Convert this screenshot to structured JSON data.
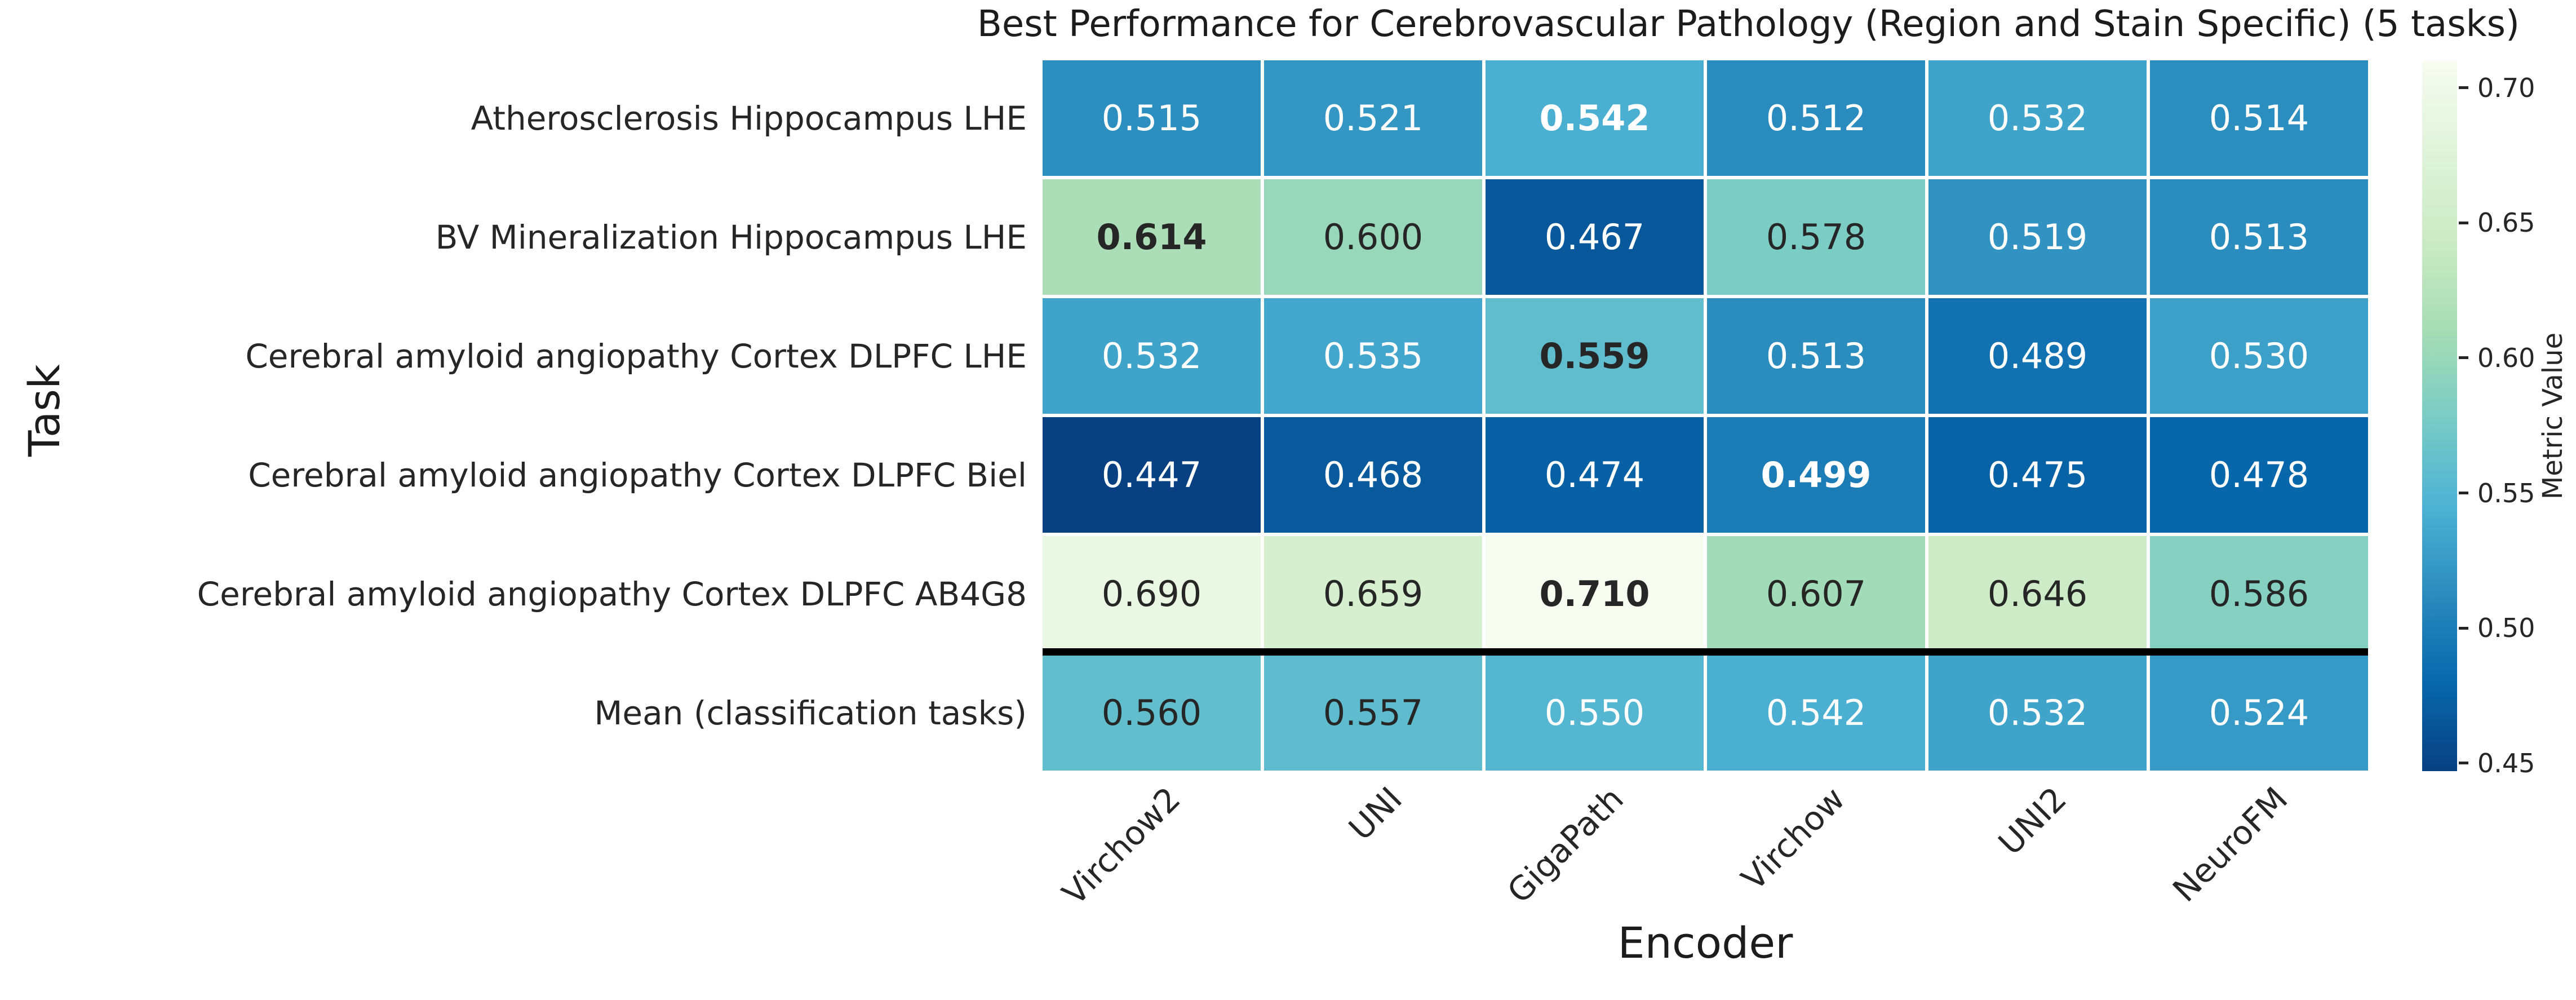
{
  "chart_data": {
    "type": "heatmap",
    "title": "Best Performance for Cerebrovascular Pathology (Region and Stain Specific) (5 tasks)",
    "xlabel": "Encoder",
    "ylabel": "Task",
    "columns": [
      "Virchow2",
      "UNI",
      "GigaPath",
      "Virchow",
      "UNI2",
      "NeuroFM"
    ],
    "rows": [
      "Atherosclerosis Hippocampus LHE",
      "BV Mineralization Hippocampus LHE",
      "Cerebral amyloid angiopathy Cortex DLPFC LHE",
      "Cerebral amyloid angiopathy Cortex DLPFC Biel",
      "Cerebral amyloid angiopathy Cortex DLPFC AB4G8",
      "Mean (classification tasks)"
    ],
    "values": [
      [
        0.515,
        0.521,
        0.542,
        0.512,
        0.532,
        0.514
      ],
      [
        0.614,
        0.6,
        0.467,
        0.578,
        0.519,
        0.513
      ],
      [
        0.532,
        0.535,
        0.559,
        0.513,
        0.489,
        0.53
      ],
      [
        0.447,
        0.468,
        0.474,
        0.499,
        0.475,
        0.478
      ],
      [
        0.69,
        0.659,
        0.71,
        0.607,
        0.646,
        0.586
      ],
      [
        0.56,
        0.557,
        0.55,
        0.542,
        0.532,
        0.524
      ]
    ],
    "bold_cells": [
      [
        0,
        2
      ],
      [
        1,
        0
      ],
      [
        2,
        2
      ],
      [
        3,
        3
      ],
      [
        4,
        2
      ]
    ],
    "separator_before_row": 5,
    "colorbar": {
      "label": "Metric Value",
      "tick_labels": [
        "0.70",
        "0.65",
        "0.60",
        "0.55",
        "0.50",
        "0.45"
      ],
      "tick_values": [
        0.7,
        0.65,
        0.6,
        0.55,
        0.5,
        0.45
      ],
      "vmin": 0.447,
      "vmax": 0.71,
      "colormap": "GnBu_r"
    },
    "colors": {
      "gnbu_anchors": [
        "#f7fcf0",
        "#e0f3db",
        "#ccebc5",
        "#a8ddb5",
        "#7bccc4",
        "#4eb3d3",
        "#2b8cbe",
        "#0868ac",
        "#084081"
      ],
      "dark_text": "#262626",
      "light_text": "#ffffff",
      "separator": "#000000"
    }
  }
}
